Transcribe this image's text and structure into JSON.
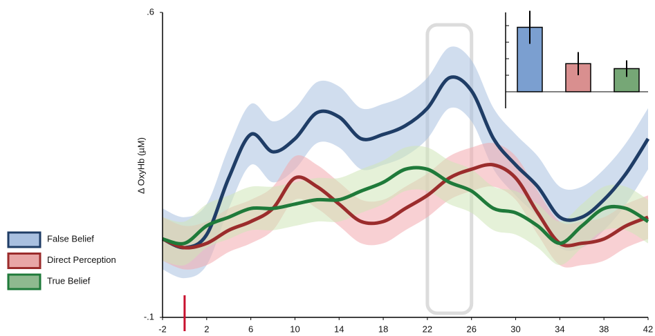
{
  "chart_data": [
    {
      "type": "line",
      "y_label": "Δ OxyHb (µM)",
      "x": [
        -2,
        0,
        2,
        4,
        6,
        8,
        10,
        12,
        14,
        16,
        18,
        20,
        22,
        24,
        26,
        28,
        30,
        32,
        34,
        36,
        38,
        40,
        42
      ],
      "xlim": [
        -2,
        42
      ],
      "xticks": [
        -2,
        2,
        6,
        10,
        14,
        18,
        22,
        26,
        30,
        34,
        38,
        42
      ],
      "ylim": [
        -0.1,
        0.6
      ],
      "yticks": [
        {
          "value": -0.1,
          "label": "-.1"
        },
        {
          "value": 0.6,
          "label": ".6"
        }
      ],
      "onset": 0,
      "highlight": [
        22,
        26
      ],
      "series": [
        {
          "name": "False Belief",
          "color": "#1f3d66",
          "band_color": "#a9c1e0",
          "legend_fill": "#a9c0e0",
          "band": 0.07,
          "values": [
            0.08,
            0.06,
            0.09,
            0.22,
            0.32,
            0.28,
            0.31,
            0.37,
            0.36,
            0.31,
            0.32,
            0.34,
            0.38,
            0.45,
            0.42,
            0.31,
            0.25,
            0.2,
            0.13,
            0.13,
            0.17,
            0.23,
            0.31
          ]
        },
        {
          "name": "Direct Perception",
          "color": "#9b2c2c",
          "band_color": "#f2a9ae",
          "legend_fill": "#e8a6a6",
          "band": 0.05,
          "values": [
            0.08,
            0.06,
            0.07,
            0.1,
            0.12,
            0.15,
            0.22,
            0.2,
            0.16,
            0.12,
            0.12,
            0.15,
            0.18,
            0.22,
            0.24,
            0.25,
            0.22,
            0.14,
            0.07,
            0.07,
            0.08,
            0.11,
            0.13
          ]
        },
        {
          "name": "True Belief",
          "color": "#1f7a3a",
          "band_color": "#cfe6b8",
          "legend_fill": "#8fb98f",
          "band": 0.05,
          "values": [
            0.08,
            0.07,
            0.11,
            0.13,
            0.15,
            0.15,
            0.16,
            0.17,
            0.17,
            0.19,
            0.21,
            0.24,
            0.24,
            0.21,
            0.19,
            0.15,
            0.14,
            0.11,
            0.07,
            0.11,
            0.15,
            0.15,
            0.12
          ]
        }
      ]
    },
    {
      "type": "bar",
      "ylim": [
        0,
        4.8
      ],
      "yticks": [
        0,
        1,
        2,
        3,
        4
      ],
      "values": [
        3.9,
        1.7,
        1.4
      ],
      "errors": [
        1.0,
        0.7,
        0.5
      ],
      "colors": [
        "#7b9fd0",
        "#d98f8f",
        "#76a776"
      ]
    }
  ]
}
